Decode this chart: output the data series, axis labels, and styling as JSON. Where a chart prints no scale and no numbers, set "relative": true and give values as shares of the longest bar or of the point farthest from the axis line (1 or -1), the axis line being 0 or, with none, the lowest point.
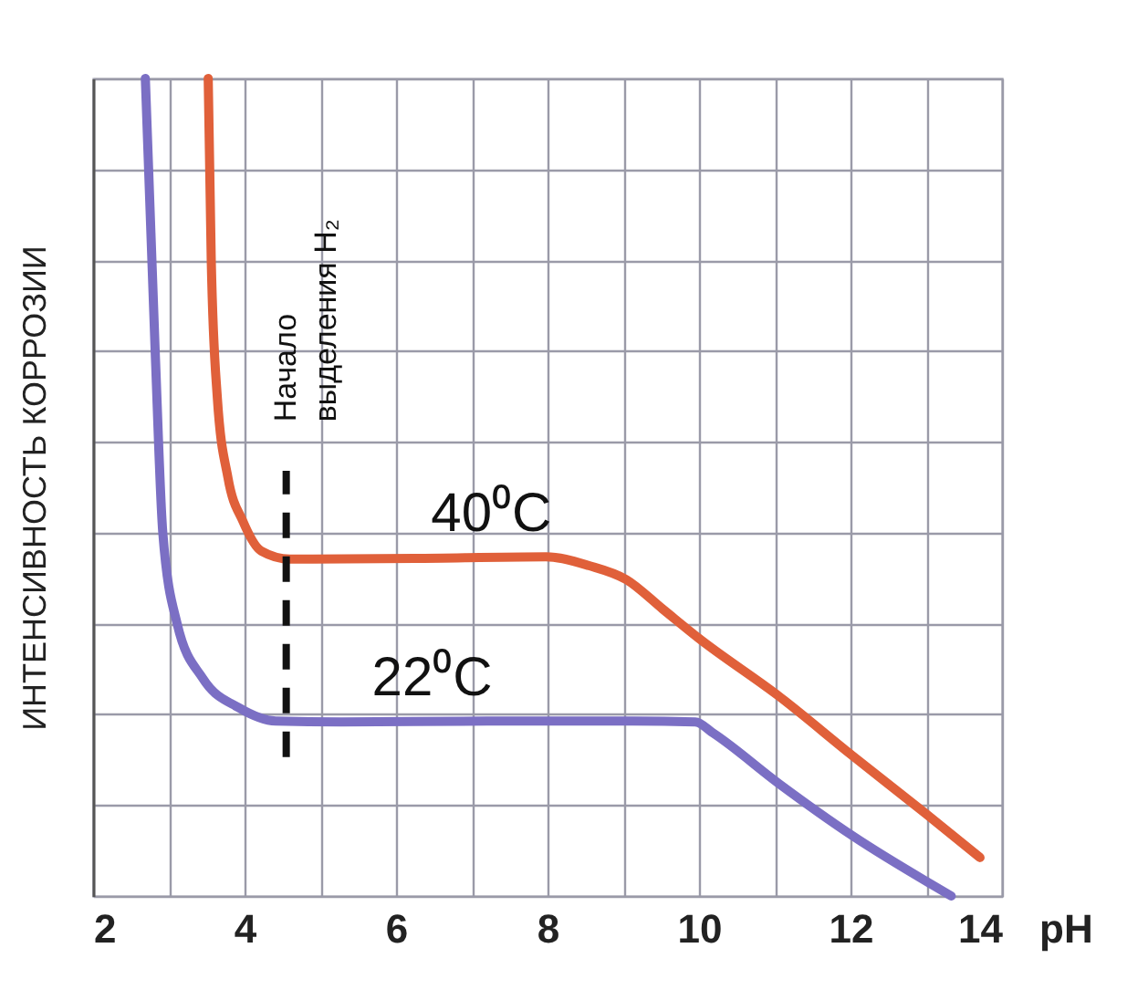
{
  "chart_data": {
    "type": "line",
    "relative": true,
    "xlabel": "pH",
    "ylabel": "ИНТЕНСИВНОСТЬ КОРРОЗИИ",
    "xlim": [
      2,
      14
    ],
    "xticks": [
      2,
      {
        "value": 3,
        "label": null
      },
      4,
      {
        "value": 5,
        "label": null
      },
      6,
      {
        "value": 7,
        "label": null
      },
      8,
      {
        "value": 9,
        "label": null
      },
      10,
      {
        "value": 11,
        "label": null
      },
      12,
      {
        "value": 13,
        "label": null
      },
      14
    ],
    "grid": true,
    "legend": false,
    "marker": "none",
    "line_style": "solid",
    "series": [
      {
        "name": "40⁰C",
        "color": "#e0603a",
        "x": [
          3.52,
          3.56,
          3.64,
          3.78,
          3.98,
          4.22,
          4.6,
          6.24,
          7.98,
          8.55,
          9.04,
          9.52,
          10.0,
          11.06,
          12.02,
          12.99,
          13.71
        ],
        "values": [
          1.0,
          0.778,
          0.61,
          0.512,
          0.458,
          0.422,
          0.412,
          0.413,
          0.415,
          0.404,
          0.387,
          0.351,
          0.315,
          0.244,
          0.172,
          0.101,
          0.047
        ]
      },
      {
        "name": "22⁰C",
        "color": "#7b6fc4",
        "x": [
          2.69,
          2.82,
          2.92,
          3.11,
          3.45,
          3.93,
          4.41,
          5.28,
          7.2,
          9.13,
          9.95,
          10.19,
          11.06,
          12.02,
          13.33
        ],
        "values": [
          1.0,
          0.666,
          0.445,
          0.333,
          0.266,
          0.23,
          0.214,
          0.213,
          0.214,
          0.214,
          0.213,
          0.199,
          0.137,
          0.074,
          0.0
        ]
      }
    ],
    "ref_lines": [
      {
        "axis": "x",
        "value": 4.55,
        "label": "Начало выделения H₂",
        "line_style": "dashed",
        "color": "#111111"
      }
    ]
  }
}
